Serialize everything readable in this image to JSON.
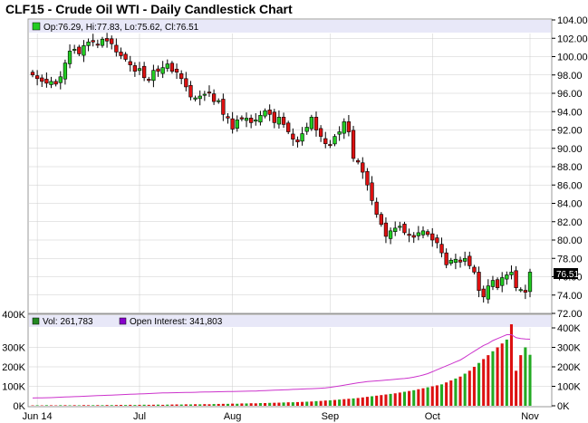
{
  "page": {
    "title": "CLF15 - Crude Oil WTI - Daily Candlestick Chart"
  },
  "colors": {
    "up": "#22cc22",
    "down": "#dd1111",
    "oi_line": "#cc33cc",
    "info_bar": "#e8e8f8",
    "grid": "#cccccc"
  },
  "chart_data": [
    {
      "type": "candlestick",
      "title": "CLF15 - Crude Oil WTI - Daily Candlestick Chart",
      "ohlc_legend": "Op:76.29, Hi:77.83, Lo:75.62, Cl:76.51",
      "last_price": "76.51",
      "ylim": [
        72,
        104
      ],
      "y_ticks": [
        "104.00",
        "102.00",
        "100.00",
        "98.00",
        "96.00",
        "94.00",
        "92.00",
        "90.00",
        "88.00",
        "86.00",
        "84.00",
        "82.00",
        "80.00",
        "78.00",
        "76.00",
        "74.00",
        "72.00"
      ],
      "x_labels": [
        "Jun 14",
        "Jul",
        "Aug",
        "Sep",
        "Oct",
        "Nov"
      ],
      "x_label_index": [
        1,
        23,
        43,
        64,
        86,
        107
      ],
      "closes": [
        98.0,
        97.6,
        97.3,
        97.1,
        97.3,
        97.0,
        97.8,
        99.3,
        100.6,
        100.8,
        100.3,
        101.2,
        101.6,
        101.6,
        101.3,
        101.9,
        101.7,
        101.4,
        100.5,
        100.1,
        99.7,
        99.1,
        98.4,
        98.7,
        97.7,
        97.4,
        98.5,
        98.4,
        98.8,
        99.2,
        98.4,
        98.3,
        97.6,
        96.7,
        95.6,
        95.5,
        95.7,
        95.9,
        96.1,
        95.1,
        95.2,
        93.7,
        93.3,
        92.1,
        93.1,
        93.2,
        93.3,
        92.8,
        93.1,
        93.6,
        94.1,
        93.7,
        92.8,
        93.4,
        92.6,
        91.8,
        91.0,
        90.7,
        91.6,
        92.3,
        93.4,
        92.0,
        91.3,
        90.5,
        90.4,
        91.3,
        91.8,
        92.9,
        91.8,
        88.9,
        88.5,
        87.4,
        86.0,
        84.3,
        82.8,
        81.7,
        80.4,
        81.0,
        81.3,
        81.5,
        80.8,
        80.5,
        80.3,
        80.8,
        81.0,
        80.6,
        80.0,
        79.7,
        78.6,
        77.3,
        77.8,
        77.9,
        77.6,
        78.0,
        77.2,
        76.5,
        74.5,
        73.8,
        75.0,
        75.6,
        74.8,
        75.9,
        76.2,
        76.5,
        74.8,
        74.6,
        74.3,
        76.5
      ],
      "volume": {
        "legend": "Vol: 261,783",
        "ylim": [
          0,
          400000
        ],
        "y_ticks_left": [
          "400K",
          "300K",
          "200K",
          "100K",
          "0K"
        ],
        "y_ticks_right": [
          "400K",
          "300K",
          "200K",
          "100K",
          "0K"
        ],
        "values": [
          2000,
          2500,
          2000,
          3000,
          2500,
          2000,
          3000,
          3000,
          2500,
          3000,
          2500,
          3500,
          3000,
          3000,
          3500,
          3000,
          4000,
          3500,
          4000,
          4500,
          4000,
          5000,
          4000,
          5000,
          5500,
          5000,
          5500,
          6000,
          5000,
          6000,
          6500,
          7000,
          6500,
          7500,
          7000,
          8000,
          7500,
          8500,
          8000,
          9000,
          9500,
          10000,
          10000,
          11000,
          10500,
          12000,
          12000,
          13000,
          12500,
          14000,
          14000,
          15000,
          15500,
          16000,
          17000,
          18000,
          18000,
          19000,
          20000,
          21000,
          22000,
          24000,
          25000,
          27000,
          28000,
          30000,
          32000,
          34000,
          36000,
          38000,
          40000,
          43000,
          46000,
          49000,
          52000,
          55000,
          58000,
          61000,
          64000,
          68000,
          72000,
          76000,
          80000,
          85000,
          90000,
          95000,
          100000,
          105000,
          110000,
          120000,
          130000,
          140000,
          150000,
          165000,
          180000,
          200000,
          220000,
          240000,
          260000,
          280000,
          300000,
          320000,
          340000,
          430000,
          180000,
          260000,
          300000,
          261783
        ],
        "down_flags": [
          1,
          0,
          1,
          0,
          1,
          1,
          0,
          1,
          0,
          1,
          0,
          1,
          1,
          0,
          1,
          0,
          1,
          0,
          1,
          1,
          0,
          1,
          0,
          1,
          0,
          1,
          1,
          0,
          1,
          0,
          1,
          1,
          0,
          1,
          0,
          1,
          0,
          1,
          1,
          0,
          1,
          1,
          0,
          1,
          0,
          1,
          0,
          1,
          1,
          0,
          1,
          0,
          1,
          1,
          0,
          1,
          0,
          1,
          1,
          0,
          1,
          0,
          1,
          1,
          0,
          1,
          0,
          1,
          1,
          0,
          1,
          1,
          1,
          0,
          1,
          1,
          1,
          0,
          1,
          1,
          0,
          1,
          0,
          1,
          1,
          0,
          1,
          1,
          0,
          1,
          1,
          0,
          1,
          0,
          1,
          1,
          0,
          1,
          1,
          0,
          1,
          1,
          0,
          1,
          1,
          1,
          0,
          0
        ]
      },
      "open_interest": {
        "legend": "Open Interest: 341,803",
        "values": [
          40000,
          40500,
          41000,
          41500,
          42000,
          43000,
          44000,
          45000,
          46000,
          47000,
          48000,
          49000,
          50000,
          51000,
          52000,
          53000,
          54000,
          55000,
          56000,
          57000,
          58000,
          59000,
          60000,
          61000,
          62000,
          63000,
          64000,
          65000,
          66000,
          66500,
          67000,
          67500,
          68000,
          68500,
          69000,
          69500,
          70000,
          70500,
          71000,
          71500,
          72000,
          72500,
          73000,
          73500,
          74000,
          74500,
          75000,
          75500,
          76000,
          77000,
          78000,
          79000,
          80000,
          81000,
          82000,
          83000,
          84000,
          85000,
          86000,
          87000,
          88000,
          89000,
          90000,
          92000,
          95000,
          98000,
          102000,
          106000,
          110000,
          114000,
          118000,
          121000,
          124000,
          126000,
          128000,
          130000,
          132000,
          134000,
          136000,
          138000,
          140000,
          143000,
          147000,
          152000,
          158000,
          165000,
          175000,
          185000,
          195000,
          205000,
          215000,
          225000,
          235000,
          250000,
          265000,
          280000,
          295000,
          310000,
          320000,
          335000,
          345000,
          355000,
          365000,
          365000,
          350000,
          345000,
          343000,
          341803
        ]
      }
    }
  ]
}
